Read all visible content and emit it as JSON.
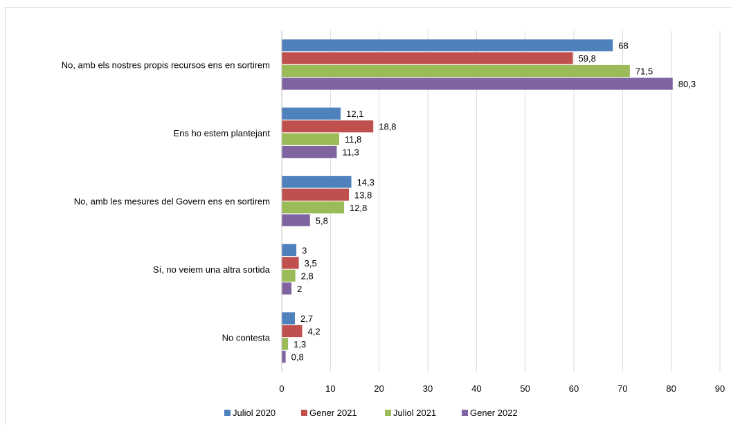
{
  "chart_data": {
    "type": "bar",
    "orientation": "horizontal",
    "categories": [
      "No, amb els nostres propis recursos ens en sortirem",
      "Ens ho estem plantejant",
      "No, amb les mesures del Govern ens en sortirem",
      "Sí, no veiem una altra sortida",
      "No contesta"
    ],
    "series": [
      {
        "name": "Juliol 2020",
        "color": "#4f81bd",
        "values": [
          68,
          12.1,
          14.3,
          3,
          2.7
        ],
        "labels": [
          "68",
          "12,1",
          "14,3",
          "3",
          "2,7"
        ]
      },
      {
        "name": "Gener 2021",
        "color": "#c0504d",
        "values": [
          59.8,
          18.8,
          13.8,
          3.5,
          4.2
        ],
        "labels": [
          "59,8",
          "18,8",
          "13,8",
          "3,5",
          "4,2"
        ]
      },
      {
        "name": "Juliol 2021",
        "color": "#9bbb59",
        "values": [
          71.5,
          11.8,
          12.8,
          2.8,
          1.3
        ],
        "labels": [
          "71,5",
          "11,8",
          "12,8",
          "2,8",
          "1,3"
        ]
      },
      {
        "name": "Gener 2022",
        "color": "#8064a2",
        "values": [
          80.3,
          11.3,
          5.8,
          2,
          0.8
        ],
        "labels": [
          "80,3",
          "11,3",
          "5,8",
          "2",
          "0,8"
        ]
      }
    ],
    "xlim": [
      0,
      90
    ],
    "ticks": [
      0,
      10,
      20,
      30,
      40,
      50,
      60,
      70,
      80,
      90
    ],
    "grid": true,
    "legend_position": "bottom",
    "title": "",
    "xlabel": "",
    "ylabel": ""
  }
}
